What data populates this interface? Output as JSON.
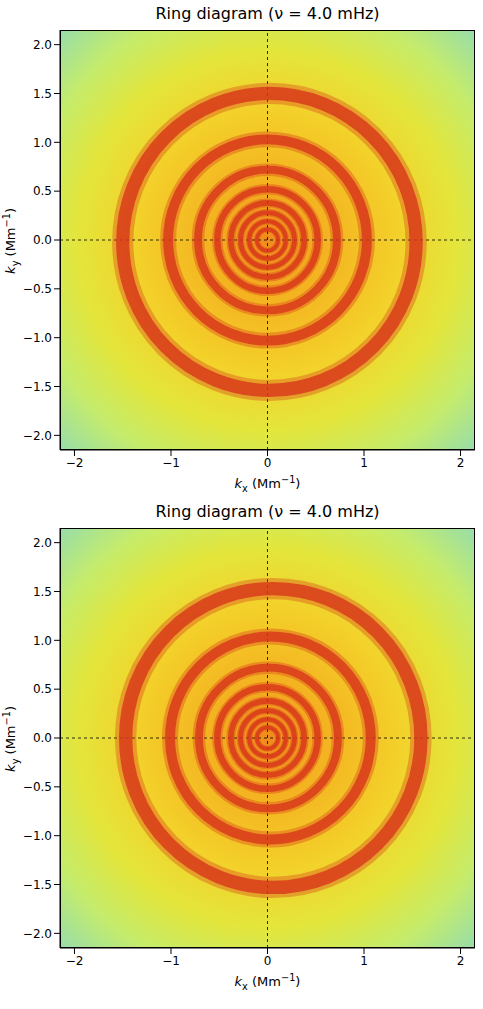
{
  "chart_data": [
    {
      "type": "rings",
      "title": "Ring diagram (ν = 4.0 mHz)",
      "xlabel": "kx (Mm−1)",
      "ylabel": "ky (Mm−1)",
      "xlim": [
        -2.15,
        2.15
      ],
      "ylim": [
        -2.15,
        2.15
      ],
      "xticks": [
        {
          "value": -2,
          "label": "−2"
        },
        {
          "value": -1,
          "label": "−1"
        },
        0,
        1,
        2
      ],
      "yticks": [
        {
          "value": -2,
          "label": "−2.0"
        },
        {
          "value": -1.5,
          "label": "−1.5"
        },
        {
          "value": -1,
          "label": "−1.0"
        },
        {
          "value": -0.5,
          "label": "−0.5"
        },
        {
          "value": 0,
          "label": "0.0"
        },
        {
          "value": 0.5,
          "label": "0.5"
        },
        {
          "value": 1,
          "label": "1.0"
        },
        {
          "value": 1.5,
          "label": "1.5"
        },
        {
          "value": 2,
          "label": "2.0"
        }
      ],
      "reference_lines": {
        "kx": 0,
        "ky": 0
      },
      "color": "#d8361a",
      "rings": [
        {
          "kx": 0.02,
          "ky": -0.02,
          "radius": 1.52
        },
        {
          "kx": 0.0,
          "ky": 0.0,
          "radius": 1.03
        },
        {
          "kx": 0.0,
          "ky": 0.0,
          "radius": 0.72
        },
        {
          "kx": 0.0,
          "ky": 0.0,
          "radius": 0.52
        },
        {
          "kx": 0.0,
          "ky": 0.0,
          "radius": 0.38
        },
        {
          "kx": 0.0,
          "ky": 0.0,
          "radius": 0.28
        },
        {
          "kx": 0.0,
          "ky": 0.0,
          "radius": 0.19
        },
        {
          "kx": 0.0,
          "ky": 0.0,
          "radius": 0.11
        }
      ]
    },
    {
      "type": "rings",
      "title": "Ring diagram (ν = 4.0 mHz)",
      "xlabel": "kx (Mm−1)",
      "ylabel": "ky (Mm−1)",
      "xlim": [
        -2.15,
        2.15
      ],
      "ylim": [
        -2.15,
        2.15
      ],
      "xticks": [
        {
          "value": -2,
          "label": "−2"
        },
        {
          "value": -1,
          "label": "−1"
        },
        0,
        1,
        2
      ],
      "yticks": [
        {
          "value": -2,
          "label": "−2.0"
        },
        {
          "value": -1.5,
          "label": "−1.5"
        },
        {
          "value": -1,
          "label": "−1.0"
        },
        {
          "value": -0.5,
          "label": "−0.5"
        },
        {
          "value": 0,
          "label": "0.0"
        },
        {
          "value": 0.5,
          "label": "0.5"
        },
        {
          "value": 1,
          "label": "1.0"
        },
        {
          "value": 1.5,
          "label": "1.5"
        },
        {
          "value": 2,
          "label": "2.0"
        }
      ],
      "reference_lines": {
        "kx": 0,
        "ky": 0
      },
      "color": "#d8361a",
      "rings": [
        {
          "kx": 0.06,
          "ky": 0.0,
          "radius": 1.53
        },
        {
          "kx": 0.03,
          "ky": 0.0,
          "radius": 1.04
        },
        {
          "kx": 0.01,
          "ky": 0.0,
          "radius": 0.72
        },
        {
          "kx": 0.0,
          "ky": 0.0,
          "radius": 0.52
        },
        {
          "kx": 0.0,
          "ky": 0.0,
          "radius": 0.38
        },
        {
          "kx": 0.0,
          "ky": 0.0,
          "radius": 0.28
        },
        {
          "kx": 0.0,
          "ky": 0.0,
          "radius": 0.19
        },
        {
          "kx": 0.0,
          "ky": 0.0,
          "radius": 0.11
        }
      ]
    }
  ]
}
